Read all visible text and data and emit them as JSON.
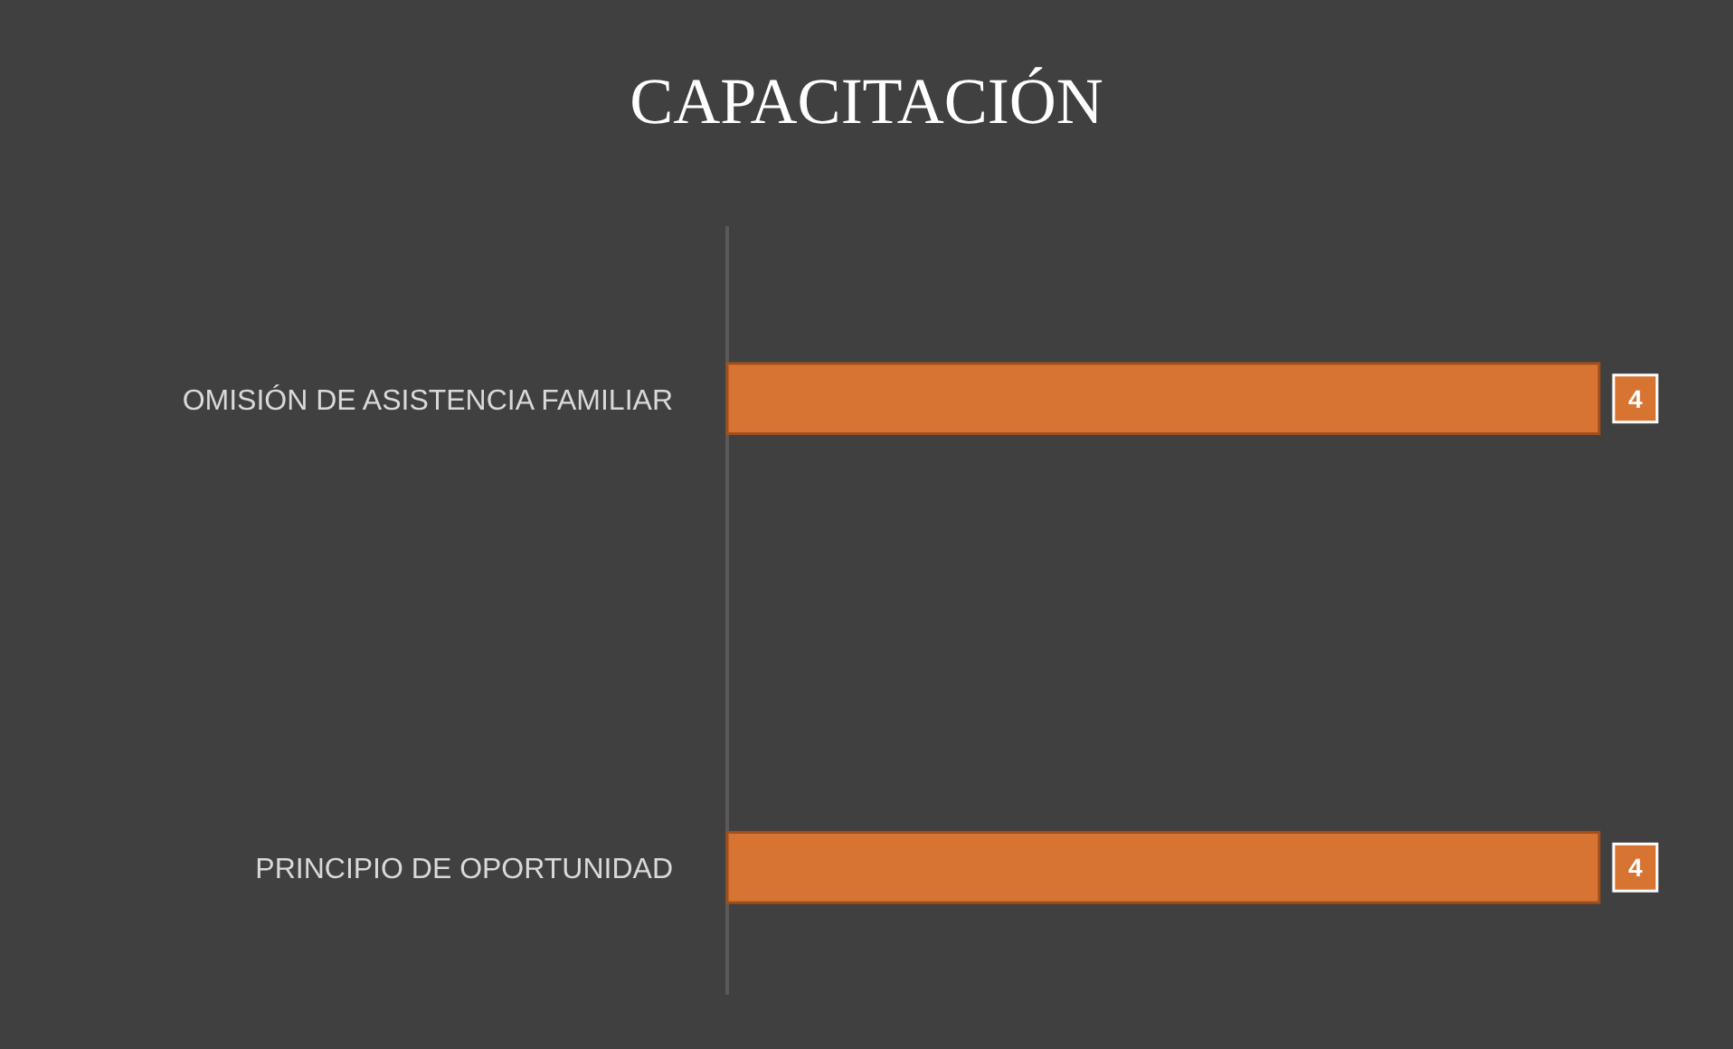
{
  "chart_data": {
    "type": "bar",
    "orientation": "horizontal",
    "title": "CAPACITACIÓN",
    "categories": [
      "OMISIÓN DE ASISTENCIA FAMILIAR",
      "PRINCIPIO DE OPORTUNIDAD"
    ],
    "values": [
      4,
      4
    ],
    "color": "#d87432",
    "data_labels": true,
    "relative": false
  }
}
